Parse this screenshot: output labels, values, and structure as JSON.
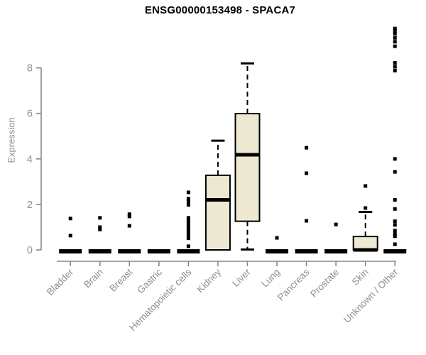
{
  "chart_data": {
    "type": "boxplot",
    "title": "ENSG00000153498 - SPACA7",
    "xlabel": "",
    "ylabel": "Expression",
    "ylim": [
      0,
      9.9
    ],
    "yticks": [
      0,
      2,
      4,
      6,
      8
    ],
    "grid": false,
    "legend": "none",
    "categories": [
      "Bladder",
      "Brain",
      "Breast",
      "Gastric",
      "Hematopoietic cells",
      "Kidney",
      "Liver",
      "Lung",
      "Pancreas",
      "Prostate",
      "Skin",
      "Unknown / Other"
    ],
    "series": [
      {
        "category": "Bladder",
        "q1": 0,
        "median": 0,
        "q3": 0,
        "whisker_low": 0,
        "whisker_high": 0,
        "outliers": [
          1.38,
          0.63
        ]
      },
      {
        "category": "Brain",
        "q1": 0,
        "median": 0,
        "q3": 0,
        "whisker_low": 0,
        "whisker_high": 0,
        "outliers": [
          1.41,
          1.0,
          0.9
        ]
      },
      {
        "category": "Breast",
        "q1": 0,
        "median": 0,
        "q3": 0,
        "whisker_low": 0,
        "whisker_high": 0,
        "outliers": [
          1.57,
          1.47,
          1.06
        ]
      },
      {
        "category": "Gastric",
        "q1": 0,
        "median": 0,
        "q3": 0,
        "whisker_low": 0,
        "whisker_high": 0,
        "outliers": []
      },
      {
        "category": "Hematopoietic cells",
        "q1": 0,
        "median": 0,
        "q3": 0,
        "whisker_low": 0,
        "whisker_high": 0,
        "outliers": [
          2.53,
          2.25,
          2.12,
          1.98,
          1.41,
          1.32,
          1.23,
          1.14,
          1.05,
          0.96,
          0.87,
          0.78,
          0.69,
          0.6,
          0.51,
          0.16
        ]
      },
      {
        "category": "Kidney",
        "q1": 0,
        "median": 2.2,
        "q3": 3.28,
        "whisker_low": 0,
        "whisker_high": 4.8,
        "outliers": []
      },
      {
        "category": "Liver",
        "q1": 1.26,
        "median": 4.18,
        "q3": 5.99,
        "whisker_low": 0.02,
        "whisker_high": 8.2,
        "outliers": []
      },
      {
        "category": "Lung",
        "q1": 0,
        "median": 0,
        "q3": 0,
        "whisker_low": 0,
        "whisker_high": 0,
        "outliers": [
          0.53
        ]
      },
      {
        "category": "Pancreas",
        "q1": 0,
        "median": 0,
        "q3": 0,
        "whisker_low": 0,
        "whisker_high": 0,
        "outliers": [
          4.49,
          3.37,
          1.28
        ]
      },
      {
        "category": "Prostate",
        "q1": 0,
        "median": 0,
        "q3": 0,
        "whisker_low": 0,
        "whisker_high": 0,
        "outliers": [
          1.12
        ]
      },
      {
        "category": "Skin",
        "q1": 0,
        "median": 0,
        "q3": 0.59,
        "whisker_low": 0,
        "whisker_high": 1.67,
        "outliers": [
          2.81,
          1.84
        ]
      },
      {
        "category": "Unknown / Other",
        "q1": 0,
        "median": 0,
        "q3": 0,
        "whisker_low": 0,
        "whisker_high": 0,
        "outliers": [
          9.73,
          9.62,
          9.5,
          9.32,
          9.15,
          8.95,
          8.22,
          8.05,
          7.88,
          4.0,
          3.43,
          2.2,
          1.8,
          1.26,
          1.1,
          0.85,
          0.7,
          0.6,
          0.25
        ]
      }
    ],
    "colors": {
      "box_fill": "#EDE8D1",
      "box_border": "#000000",
      "median": "#000000",
      "whisker": "#000000",
      "outlier": "#000000",
      "axis": "#878787",
      "tick_label": "#8e8e8e",
      "title": "#000000"
    }
  }
}
